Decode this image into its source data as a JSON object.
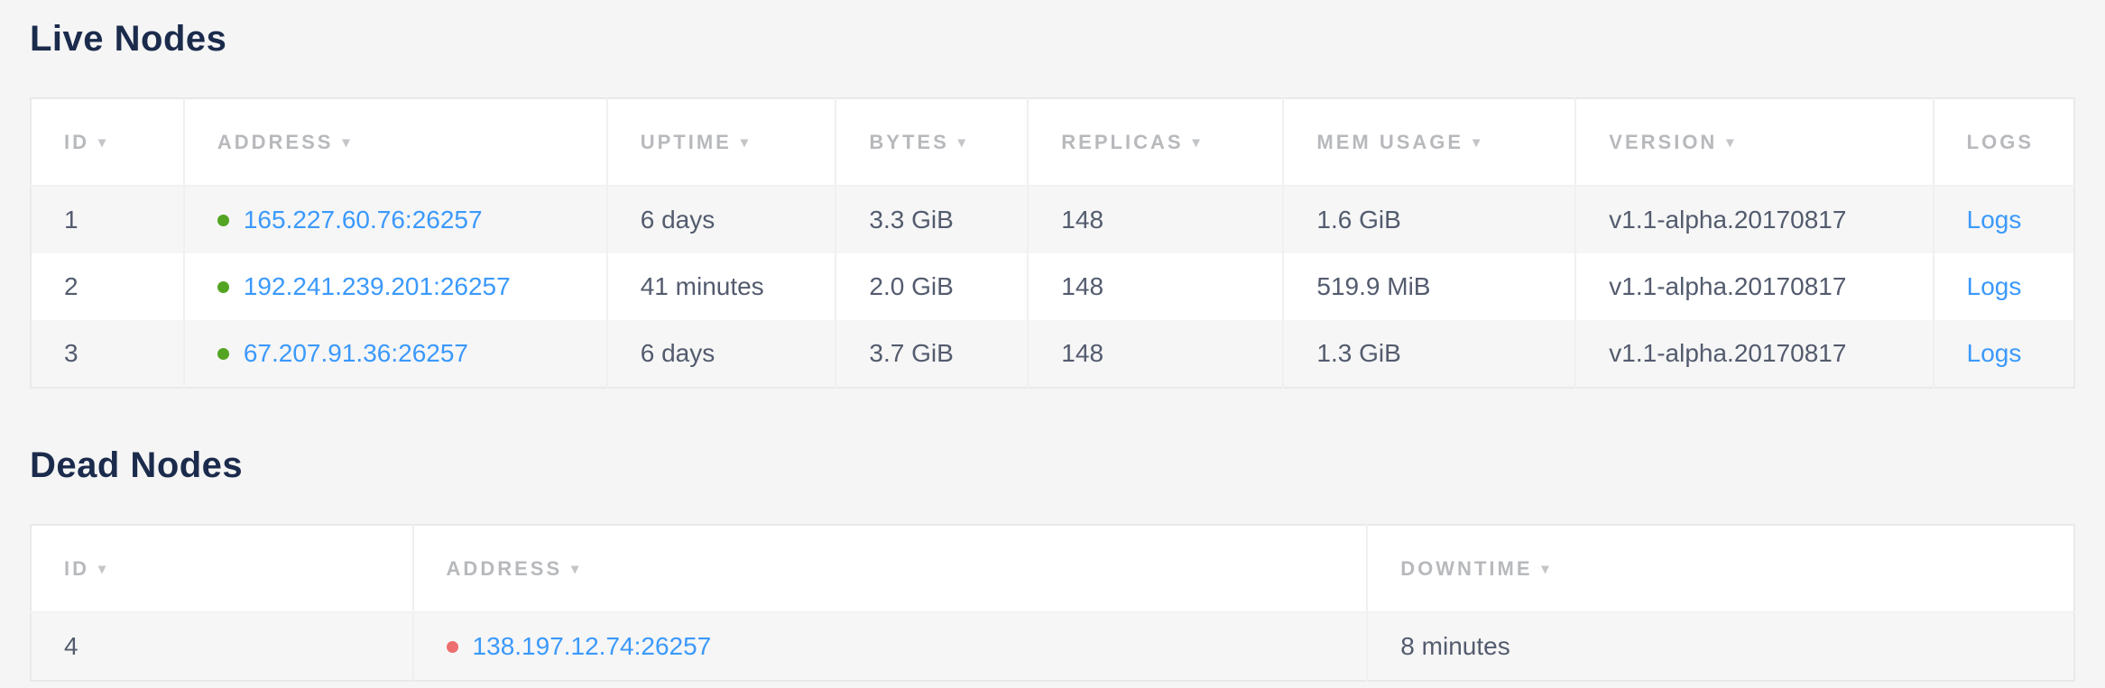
{
  "live_nodes": {
    "title": "Live Nodes",
    "columns": [
      {
        "key": "id",
        "label": "ID",
        "sortable": true
      },
      {
        "key": "address",
        "label": "ADDRESS",
        "sortable": true
      },
      {
        "key": "uptime",
        "label": "UPTIME",
        "sortable": true
      },
      {
        "key": "bytes",
        "label": "BYTES",
        "sortable": true
      },
      {
        "key": "replicas",
        "label": "REPLICAS",
        "sortable": true
      },
      {
        "key": "mem_usage",
        "label": "MEM USAGE",
        "sortable": true
      },
      {
        "key": "version",
        "label": "VERSION",
        "sortable": true
      },
      {
        "key": "logs",
        "label": "LOGS",
        "sortable": false
      }
    ],
    "rows": [
      {
        "id": "1",
        "status": "live",
        "address": "165.227.60.76:26257",
        "uptime": "6 days",
        "bytes": "3.3 GiB",
        "replicas": "148",
        "mem_usage": "1.6 GiB",
        "version": "v1.1-alpha.20170817",
        "logs": "Logs"
      },
      {
        "id": "2",
        "status": "live",
        "address": "192.241.239.201:26257",
        "uptime": "41 minutes",
        "bytes": "2.0 GiB",
        "replicas": "148",
        "mem_usage": "519.9 MiB",
        "version": "v1.1-alpha.20170817",
        "logs": "Logs"
      },
      {
        "id": "3",
        "status": "live",
        "address": "67.207.91.36:26257",
        "uptime": "6 days",
        "bytes": "3.7 GiB",
        "replicas": "148",
        "mem_usage": "1.3 GiB",
        "version": "v1.1-alpha.20170817",
        "logs": "Logs"
      }
    ]
  },
  "dead_nodes": {
    "title": "Dead Nodes",
    "columns": [
      {
        "key": "id",
        "label": "ID",
        "sortable": true
      },
      {
        "key": "address",
        "label": "ADDRESS",
        "sortable": true
      },
      {
        "key": "downtime",
        "label": "DOWNTIME",
        "sortable": true
      }
    ],
    "rows": [
      {
        "id": "4",
        "status": "dead",
        "address": "138.197.12.74:26257",
        "downtime": "8 minutes"
      }
    ]
  },
  "icons": {
    "sort_arrow": "▾",
    "status_dot": "circle"
  },
  "colors": {
    "accent_link": "#3b99fc",
    "status_live": "#54a423",
    "status_dead": "#ed6e6e",
    "title_text": "#1b2b4c",
    "header_text": "#b7b9bc",
    "cell_text": "#535b6e",
    "page_background": "#f5f5f5"
  }
}
